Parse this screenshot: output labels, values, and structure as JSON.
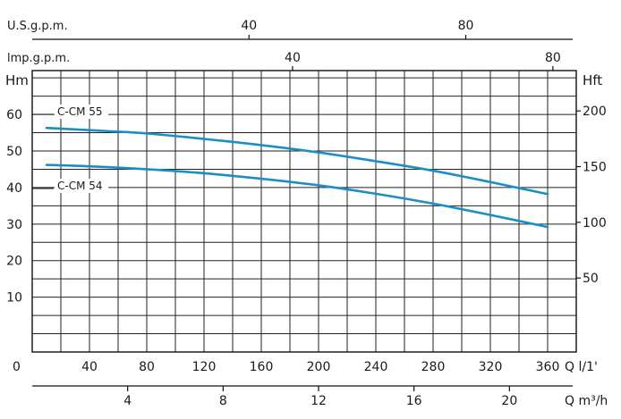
{
  "chart_data": {
    "type": "line",
    "x_unit_label": "Q l/1'",
    "x_ticks": [
      40,
      80,
      120,
      160,
      200,
      240,
      280,
      320,
      360
    ],
    "x_origin_label": "0",
    "xlim": [
      0,
      380
    ],
    "y_left_label": "Hm",
    "y_left_ticks": [
      10,
      20,
      30,
      40,
      50,
      60
    ],
    "ylim": [
      -5,
      72
    ],
    "y_right_label": "Hft",
    "y_right_ticks": [
      50,
      100,
      150,
      200
    ],
    "top_axis_usgpm": {
      "label": "U.S.g.p.m.",
      "ticks": [
        40,
        80
      ]
    },
    "top_axis_impgpm": {
      "label": "lmp.g.p.m.",
      "ticks": [
        40,
        80
      ]
    },
    "bottom_axis_m3h": {
      "label": "Q m³/h",
      "ticks": [
        4,
        8,
        12,
        16,
        20
      ]
    },
    "series": [
      {
        "name": "C-CM 55",
        "color": "#1a8ec9",
        "x": [
          10,
          40,
          80,
          120,
          160,
          200,
          240,
          280,
          320,
          360
        ],
        "y": [
          56.3,
          55.7,
          54.8,
          53.3,
          51.6,
          49.6,
          47.2,
          44.6,
          41.5,
          38.2
        ]
      },
      {
        "name": "C-CM 54",
        "color": "#1a8ec9",
        "x": [
          10,
          40,
          80,
          120,
          160,
          200,
          240,
          280,
          320,
          360
        ],
        "y": [
          46.2,
          45.8,
          45.0,
          43.9,
          42.4,
          40.6,
          38.3,
          35.6,
          32.5,
          29.2
        ]
      }
    ],
    "grid": true
  }
}
